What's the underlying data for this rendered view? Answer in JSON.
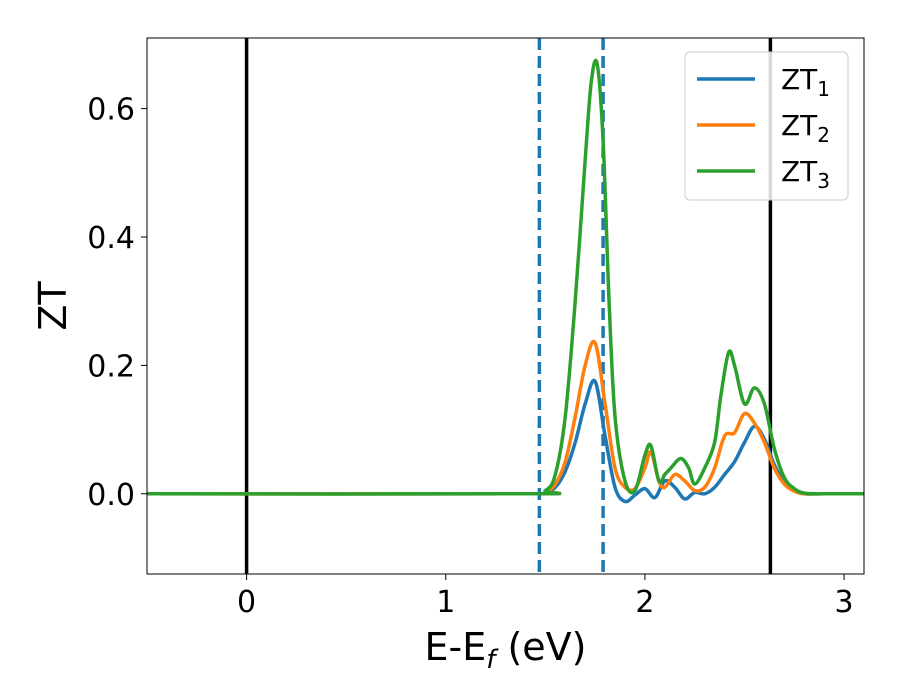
{
  "chart_data": {
    "type": "line",
    "xlabel": "E-E",
    "xlabel_sub": "f",
    "xlabel_unit": " (eV)",
    "ylabel": "ZT",
    "xlim": [
      -0.5,
      3.1
    ],
    "ylim": [
      -0.125,
      0.71
    ],
    "xticks": [
      0,
      1,
      2,
      3
    ],
    "xtick_labels": [
      "0",
      "1",
      "2",
      "3"
    ],
    "yticks": [
      0.0,
      0.2,
      0.4,
      0.6
    ],
    "ytick_labels": [
      "0.0",
      "0.2",
      "0.4",
      "0.6"
    ],
    "grid": false,
    "legend_position": "top-right",
    "reference_lines": [
      {
        "x": 0.0,
        "style": "solid",
        "color": "#000000"
      },
      {
        "x": 2.63,
        "style": "solid",
        "color": "#000000"
      },
      {
        "x": 1.47,
        "style": "dashed",
        "color": "#1f77b4"
      },
      {
        "x": 1.79,
        "style": "dashed",
        "color": "#1f77b4"
      }
    ],
    "series": [
      {
        "name": "ZT",
        "name_sub": "1",
        "color": "#1f77b4",
        "x": [
          -0.5,
          1.4,
          1.5,
          1.55,
          1.6,
          1.65,
          1.7,
          1.75,
          1.8,
          1.85,
          1.9,
          1.95,
          2.0,
          2.05,
          2.1,
          2.15,
          2.2,
          2.25,
          2.3,
          2.35,
          2.4,
          2.45,
          2.5,
          2.55,
          2.6,
          2.65,
          2.7,
          2.75,
          2.8,
          2.9,
          3.1
        ],
        "y": [
          0.0,
          0.0,
          0.002,
          0.01,
          0.035,
          0.08,
          0.14,
          0.175,
          0.09,
          0.01,
          -0.012,
          -0.002,
          0.008,
          -0.006,
          0.02,
          0.01,
          -0.008,
          0.002,
          0.0,
          0.01,
          0.03,
          0.05,
          0.08,
          0.105,
          0.085,
          0.045,
          0.018,
          0.005,
          0.0,
          0.0,
          0.0
        ]
      },
      {
        "name": "ZT",
        "name_sub": "2",
        "color": "#ff7f0e",
        "x": [
          -0.5,
          1.4,
          1.5,
          1.55,
          1.6,
          1.65,
          1.7,
          1.75,
          1.8,
          1.85,
          1.9,
          1.95,
          2.0,
          2.03,
          2.07,
          2.1,
          2.15,
          2.2,
          2.25,
          2.3,
          2.35,
          2.4,
          2.45,
          2.5,
          2.55,
          2.6,
          2.65,
          2.7,
          2.75,
          2.8,
          2.9,
          3.1
        ],
        "y": [
          0.0,
          0.0,
          0.003,
          0.015,
          0.05,
          0.12,
          0.2,
          0.235,
          0.14,
          0.04,
          0.01,
          0.008,
          0.04,
          0.065,
          0.02,
          0.01,
          0.03,
          0.02,
          0.005,
          0.01,
          0.04,
          0.09,
          0.095,
          0.125,
          0.11,
          0.08,
          0.04,
          0.015,
          0.004,
          0.0,
          0.0,
          0.0
        ]
      },
      {
        "name": "ZT",
        "name_sub": "3",
        "color": "#2ca02c",
        "x": [
          -0.5,
          1.4,
          1.5,
          1.55,
          1.6,
          1.65,
          1.7,
          1.73,
          1.76,
          1.79,
          1.82,
          1.85,
          1.9,
          1.95,
          2.0,
          2.03,
          2.07,
          2.1,
          2.13,
          2.18,
          2.22,
          2.25,
          2.3,
          2.35,
          2.38,
          2.42,
          2.45,
          2.5,
          2.55,
          2.6,
          2.65,
          2.7,
          2.75,
          2.8,
          2.9,
          3.1
        ],
        "y": [
          0.0,
          0.0,
          0.005,
          0.03,
          0.12,
          0.3,
          0.52,
          0.64,
          0.67,
          0.55,
          0.3,
          0.12,
          0.02,
          0.005,
          0.06,
          0.075,
          0.02,
          0.03,
          0.04,
          0.055,
          0.04,
          0.015,
          0.04,
          0.08,
          0.15,
          0.22,
          0.2,
          0.14,
          0.165,
          0.14,
          0.07,
          0.025,
          0.008,
          0.001,
          0.0,
          0.0
        ]
      }
    ]
  }
}
